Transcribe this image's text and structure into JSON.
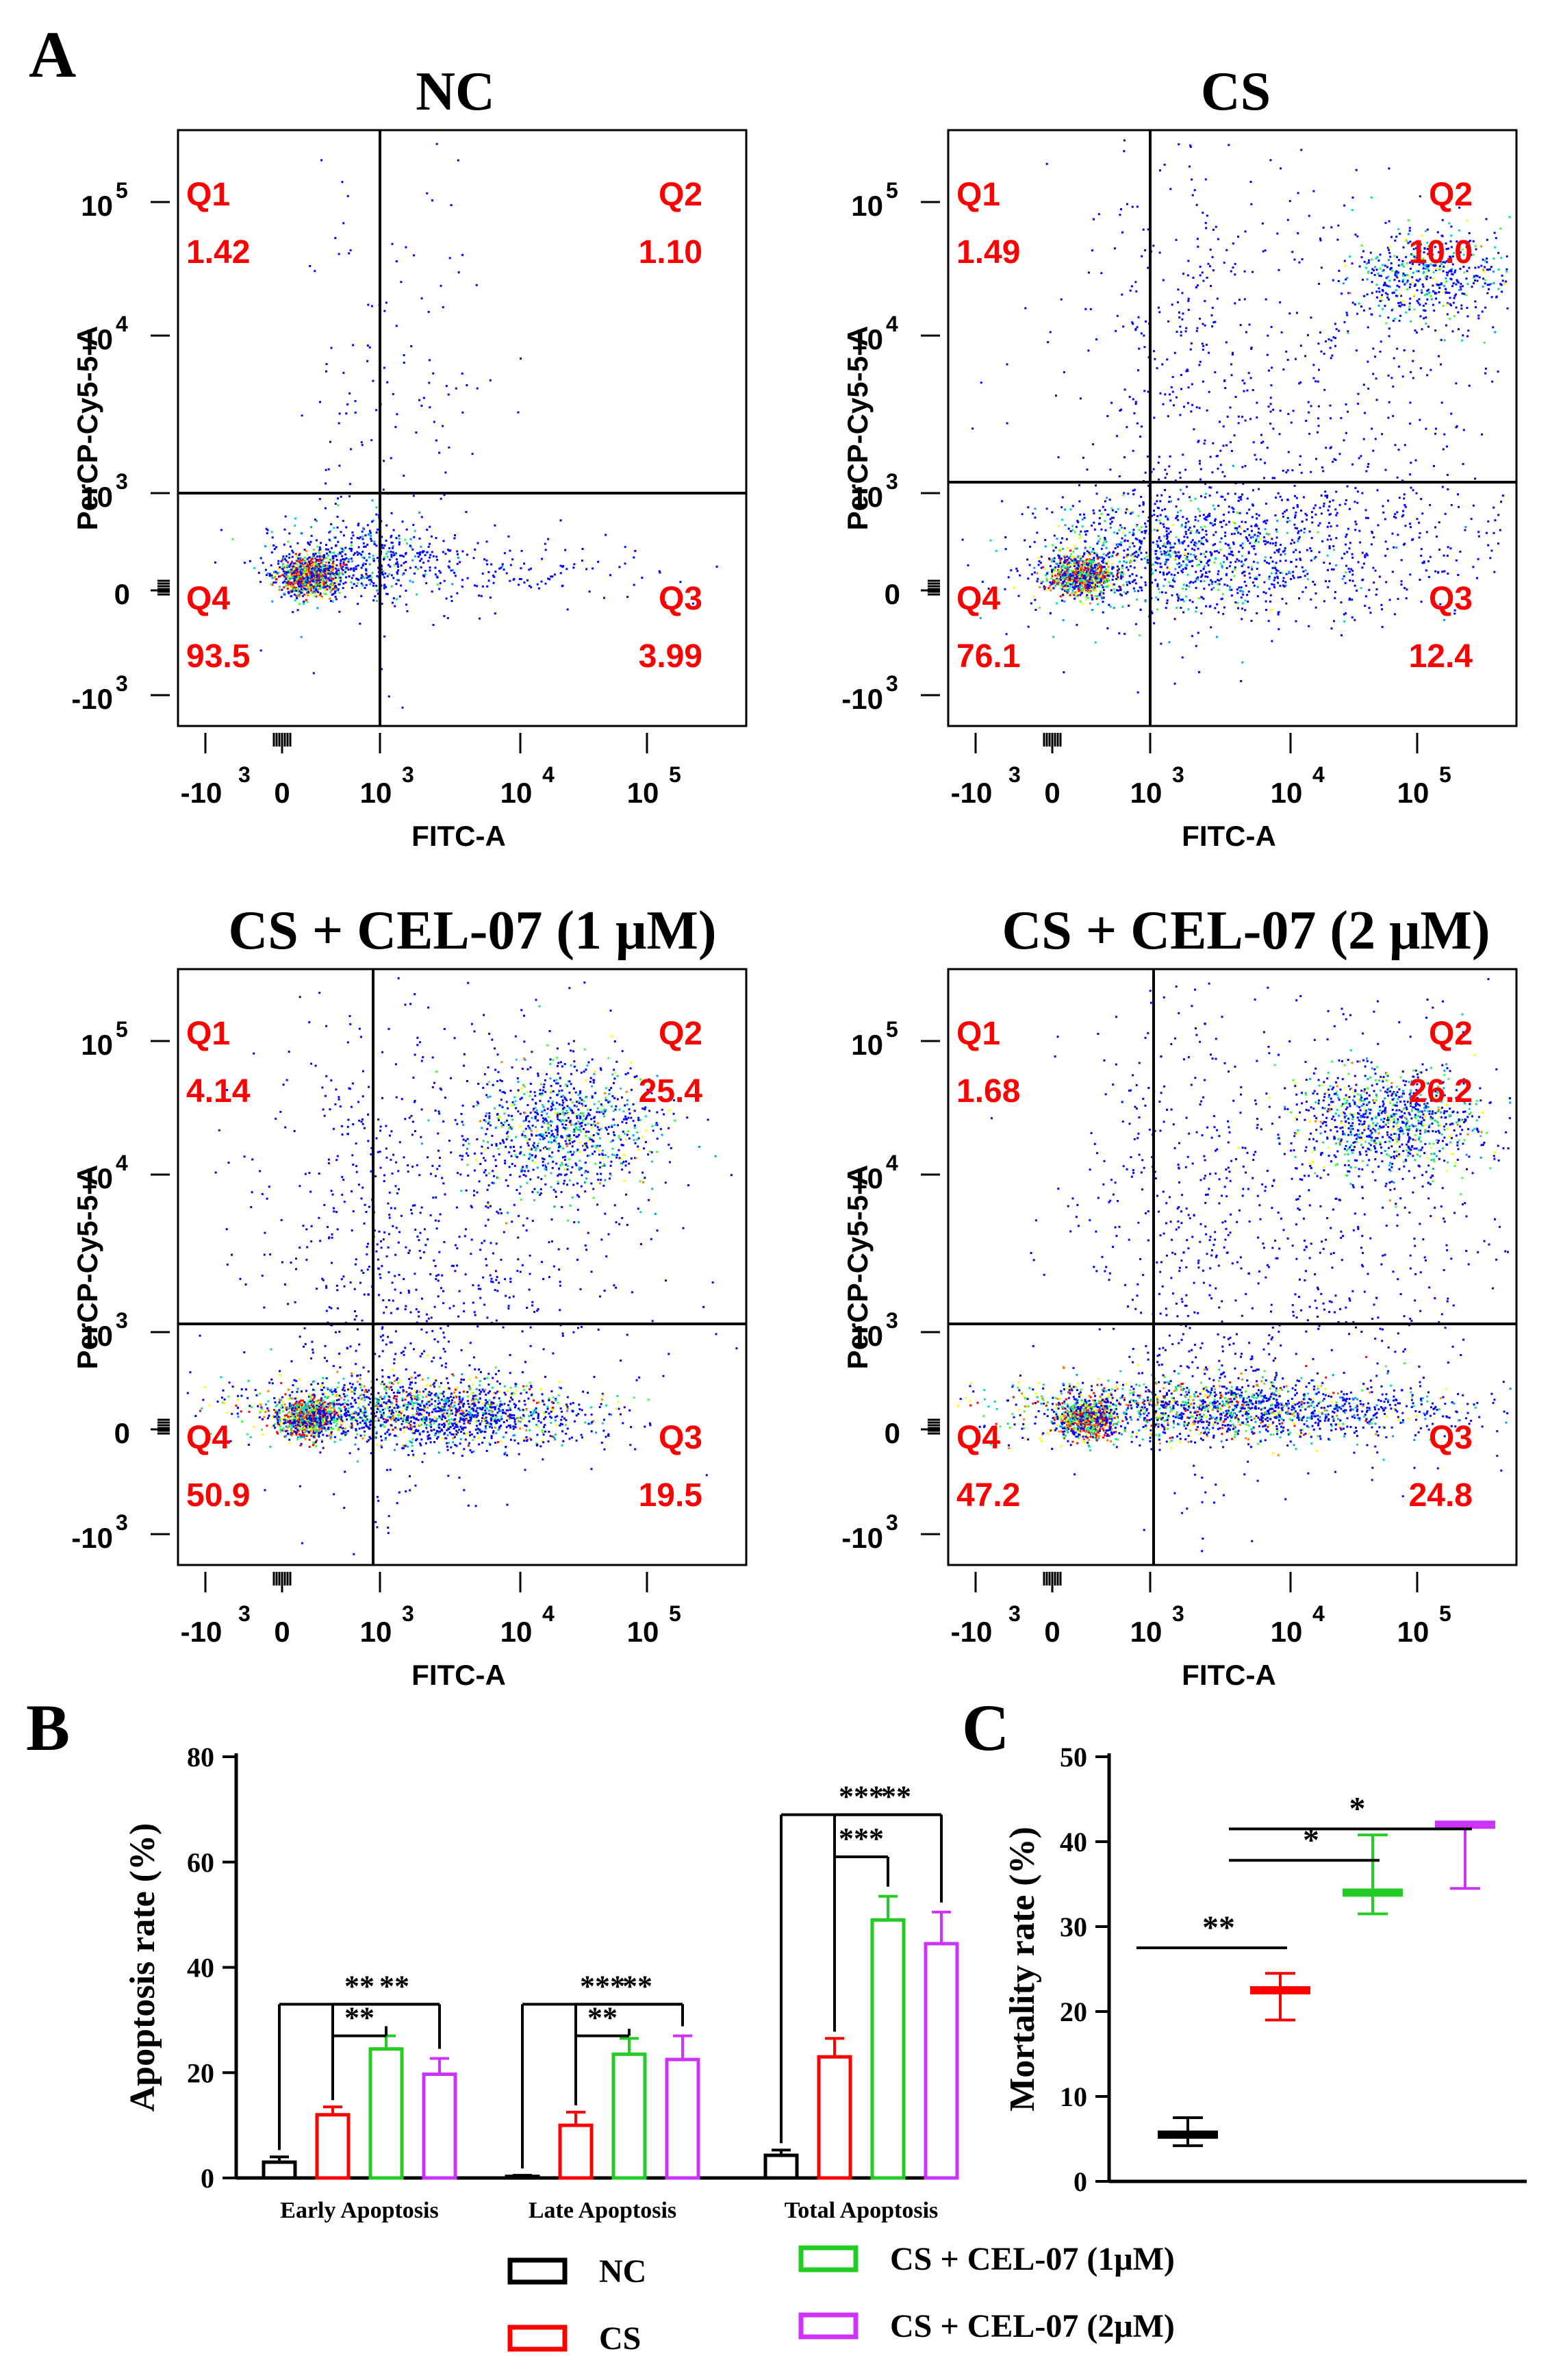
{
  "figure": {
    "panel_labels": [
      "A",
      "B",
      "C"
    ]
  },
  "colors": {
    "NC": "#000000",
    "CS": "#ff0000",
    "CEL1": "#22cc22",
    "CEL2": "#cc33ff",
    "quadrant_text": "#ff0000"
  },
  "chart_data": [
    {
      "id": "flow_nc",
      "type": "scatter",
      "title": "NC",
      "xlabel": "FITC-A",
      "ylabel": "PerCP-Cy5-5-A",
      "x_ticks": [
        {
          "base": "-10",
          "exp": "3"
        },
        {
          "base": "0",
          "exp": ""
        },
        {
          "base": "10",
          "exp": "3"
        },
        {
          "base": "10",
          "exp": "4"
        },
        {
          "base": "10",
          "exp": "5"
        }
      ],
      "y_ticks": [
        {
          "base": "10",
          "exp": "5"
        },
        {
          "base": "10",
          "exp": "4"
        },
        {
          "base": "10",
          "exp": "3"
        },
        {
          "base": "0",
          "exp": ""
        },
        {
          "base": "-10",
          "exp": "3"
        }
      ],
      "quadrants": [
        {
          "label": "Q1",
          "value": "1.42"
        },
        {
          "label": "Q2",
          "value": "1.10"
        },
        {
          "label": "Q3",
          "value": "3.99"
        },
        {
          "label": "Q4",
          "value": "93.5"
        }
      ]
    },
    {
      "id": "flow_cs",
      "type": "scatter",
      "title": "CS",
      "xlabel": "FITC-A",
      "ylabel": "PerCP-Cy5-5-A",
      "x_ticks": [
        {
          "base": "-10",
          "exp": "3"
        },
        {
          "base": "0",
          "exp": ""
        },
        {
          "base": "10",
          "exp": "3"
        },
        {
          "base": "10",
          "exp": "4"
        },
        {
          "base": "10",
          "exp": "5"
        }
      ],
      "y_ticks": [
        {
          "base": "10",
          "exp": "5"
        },
        {
          "base": "10",
          "exp": "4"
        },
        {
          "base": "10",
          "exp": "3"
        },
        {
          "base": "0",
          "exp": ""
        },
        {
          "base": "-10",
          "exp": "3"
        }
      ],
      "quadrants": [
        {
          "label": "Q1",
          "value": "1.49"
        },
        {
          "label": "Q2",
          "value": "10.0"
        },
        {
          "label": "Q3",
          "value": "12.4"
        },
        {
          "label": "Q4",
          "value": "76.1"
        }
      ]
    },
    {
      "id": "flow_cel1",
      "type": "scatter",
      "title": "CS + CEL-07 (1 μM)",
      "xlabel": "FITC-A",
      "ylabel": "PerCP-Cy5-5-A",
      "x_ticks": [
        {
          "base": "-10",
          "exp": "3"
        },
        {
          "base": "0",
          "exp": ""
        },
        {
          "base": "10",
          "exp": "3"
        },
        {
          "base": "10",
          "exp": "4"
        },
        {
          "base": "10",
          "exp": "5"
        }
      ],
      "y_ticks": [
        {
          "base": "10",
          "exp": "5"
        },
        {
          "base": "10",
          "exp": "4"
        },
        {
          "base": "10",
          "exp": "3"
        },
        {
          "base": "0",
          "exp": ""
        },
        {
          "base": "-10",
          "exp": "3"
        }
      ],
      "quadrants": [
        {
          "label": "Q1",
          "value": "4.14"
        },
        {
          "label": "Q2",
          "value": "25.4"
        },
        {
          "label": "Q3",
          "value": "19.5"
        },
        {
          "label": "Q4",
          "value": "50.9"
        }
      ]
    },
    {
      "id": "flow_cel2",
      "type": "scatter",
      "title": "CS + CEL-07  (2 μM)",
      "xlabel": "FITC-A",
      "ylabel": "PerCP-Cy5-5-A",
      "x_ticks": [
        {
          "base": "-10",
          "exp": "3"
        },
        {
          "base": "0",
          "exp": ""
        },
        {
          "base": "10",
          "exp": "3"
        },
        {
          "base": "10",
          "exp": "4"
        },
        {
          "base": "10",
          "exp": "5"
        }
      ],
      "y_ticks": [
        {
          "base": "10",
          "exp": "5"
        },
        {
          "base": "10",
          "exp": "4"
        },
        {
          "base": "10",
          "exp": "3"
        },
        {
          "base": "0",
          "exp": ""
        },
        {
          "base": "-10",
          "exp": "3"
        }
      ],
      "quadrants": [
        {
          "label": "Q1",
          "value": "1.68"
        },
        {
          "label": "Q2",
          "value": "26.2"
        },
        {
          "label": "Q3",
          "value": "24.8"
        },
        {
          "label": "Q4",
          "value": "47.2"
        }
      ]
    },
    {
      "id": "apoptosis_bar",
      "type": "bar",
      "ylabel": "Apoptosis rate (%)",
      "ylim": [
        0,
        80
      ],
      "yticks": [
        0,
        20,
        40,
        60,
        80
      ],
      "categories": [
        "Early Apoptosis",
        "Late Apoptosis",
        "Total Apoptosis"
      ],
      "series": [
        {
          "name": "NC",
          "values": [
            3,
            0.3,
            4.3
          ],
          "errors": [
            1,
            0.2,
            1
          ]
        },
        {
          "name": "CS",
          "values": [
            12,
            10,
            23
          ],
          "errors": [
            1.5,
            2.5,
            3.5
          ]
        },
        {
          "name": "CS + CEL-07 (1μM)",
          "values": [
            24.5,
            23.5,
            49
          ],
          "errors": [
            2.5,
            3,
            4.5
          ]
        },
        {
          "name": "CS + CEL-07 (2μM)",
          "values": [
            19.7,
            22.5,
            44.5
          ],
          "errors": [
            3,
            4.5,
            6
          ]
        }
      ],
      "significance": [
        {
          "category": 0,
          "from": 0,
          "to": 3,
          "label": "**",
          "y": 33
        },
        {
          "category": 0,
          "from": 1,
          "to": 3,
          "label": "**",
          "y": 33
        },
        {
          "category": 0,
          "from": 1,
          "to": 2,
          "label": "**",
          "y": 27
        },
        {
          "category": 1,
          "from": 0,
          "to": 3,
          "label": "***",
          "y": 33
        },
        {
          "category": 1,
          "from": 1,
          "to": 3,
          "label": "**",
          "y": 33
        },
        {
          "category": 1,
          "from": 1,
          "to": 2,
          "label": "**",
          "y": 27
        },
        {
          "category": 2,
          "from": 0,
          "to": 3,
          "label": "***",
          "y": 69
        },
        {
          "category": 2,
          "from": 1,
          "to": 3,
          "label": "**",
          "y": 69
        },
        {
          "category": 2,
          "from": 1,
          "to": 2,
          "label": "***",
          "y": 61
        }
      ]
    },
    {
      "id": "mortality_plot",
      "type": "scatter",
      "ylabel": "Mortality rate (%)",
      "ylim": [
        0,
        50
      ],
      "yticks": [
        0,
        10,
        20,
        30,
        40,
        50
      ],
      "groups": [
        "NC",
        "CS",
        "CS + CEL-07 (1μM)",
        "CS + CEL-07 (2μM)"
      ],
      "mean": [
        5.5,
        22.5,
        34,
        42
      ],
      "upper": [
        7.5,
        24.5,
        40.8,
        42
      ],
      "lower": [
        4.2,
        19,
        31.5,
        34.5
      ],
      "significance": [
        {
          "from": 0,
          "to": 1,
          "label": "**",
          "y": 27.5
        },
        {
          "from": 1,
          "to": 2,
          "label": "*",
          "y": 37.8
        },
        {
          "from": 1,
          "to": 3,
          "label": "*",
          "y": 41.5
        }
      ]
    }
  ]
}
